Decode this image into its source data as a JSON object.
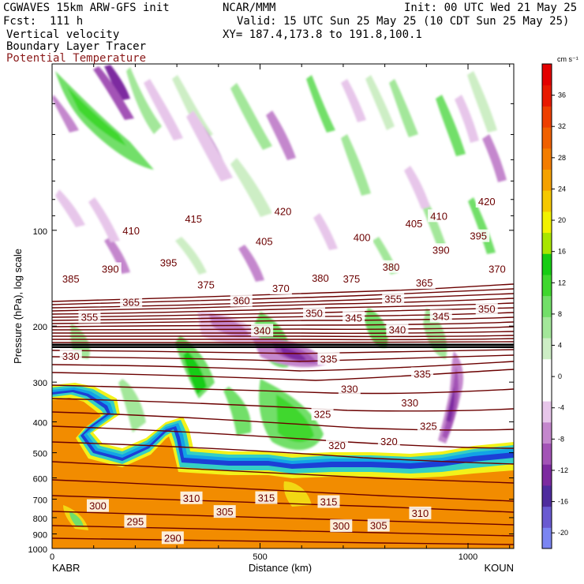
{
  "header": {
    "model": "CGWAVES 15km ARW-GFS init",
    "forecast": "Fcst:  111 h",
    "field1": "Vertical velocity",
    "field2": "Boundary Layer Tracer",
    "field3": "Potential Temperature",
    "org": "NCAR/MMM",
    "init": "Init: 00 UTC Wed 21 May 25",
    "valid": "Valid: 15 UTC Sun 25 May 25 (10 CDT Sun 25 May 25)",
    "xy": "XY= 187.4,173.8 to 191.8,100.1"
  },
  "colors": {
    "theta": "#6b0000",
    "pbl": "#f28c00",
    "pbl_edge": [
      "#1c3fd6",
      "#12a3e6",
      "#34cfc4",
      "#f2f21a"
    ],
    "colorbar": [
      "#7b85f2",
      "#6a5ad1",
      "#4f2c9e",
      "#7d2aa0",
      "#a353b6",
      "#c487cd",
      "#e7c6ea",
      "#ffffff",
      "#ffffff",
      "#cdeec5",
      "#a3e79a",
      "#72df69",
      "#3fd72e",
      "#16cc13",
      "#a8e600",
      "#f2f200",
      "#f6c800",
      "#f5a100",
      "#f47d00",
      "#f06000",
      "#ee3f00",
      "#e81900",
      "#e30000"
    ]
  },
  "chart_data": {
    "type": "cross-section",
    "xlabel": "Distance (km)",
    "ylabel": "Pressure (hPa), log scale",
    "x_range": [
      0,
      1110
    ],
    "x_ticks": [
      "0",
      "500",
      "1000"
    ],
    "x_endpoints": {
      "left": "KABR",
      "right": "KOUN"
    },
    "y_range": [
      1000,
      30
    ],
    "y_ticks": [
      "100",
      "200",
      "300",
      "400",
      "500",
      "600",
      "700",
      "800",
      "900",
      "1000"
    ],
    "colorbar": {
      "unit": "cm s⁻¹",
      "labels": [
        "-20",
        "-16",
        "-12",
        "-8",
        "-4",
        "0",
        "4",
        "8",
        "12",
        "16",
        "20",
        "24",
        "28",
        "32",
        "36"
      ]
    },
    "theta_labels": [
      {
        "text": "420",
        "x": 555,
        "p": 87
      },
      {
        "text": "420",
        "x": 1045,
        "p": 81
      },
      {
        "text": "415",
        "x": 340,
        "p": 92
      },
      {
        "text": "410",
        "x": 190,
        "p": 100
      },
      {
        "text": "410",
        "x": 930,
        "p": 90
      },
      {
        "text": "405",
        "x": 510,
        "p": 108
      },
      {
        "text": "405",
        "x": 870,
        "p": 95
      },
      {
        "text": "400",
        "x": 745,
        "p": 105
      },
      {
        "text": "395",
        "x": 280,
        "p": 126
      },
      {
        "text": "395",
        "x": 1025,
        "p": 104
      },
      {
        "text": "390",
        "x": 140,
        "p": 132
      },
      {
        "text": "390",
        "x": 935,
        "p": 115
      },
      {
        "text": "385",
        "x": 45,
        "p": 142
      },
      {
        "text": "380",
        "x": 645,
        "p": 141
      },
      {
        "text": "380",
        "x": 815,
        "p": 130
      },
      {
        "text": "375",
        "x": 370,
        "p": 148
      },
      {
        "text": "375",
        "x": 720,
        "p": 142
      },
      {
        "text": "370",
        "x": 1070,
        "p": 132
      },
      {
        "text": "370",
        "x": 550,
        "p": 152
      },
      {
        "text": "365",
        "x": 190,
        "p": 168
      },
      {
        "text": "365",
        "x": 895,
        "p": 146
      },
      {
        "text": "360",
        "x": 455,
        "p": 166
      },
      {
        "text": "355",
        "x": 90,
        "p": 187
      },
      {
        "text": "355",
        "x": 820,
        "p": 164
      },
      {
        "text": "350",
        "x": 630,
        "p": 182
      },
      {
        "text": "350",
        "x": 1045,
        "p": 176
      },
      {
        "text": "345",
        "x": 725,
        "p": 188
      },
      {
        "text": "345",
        "x": 935,
        "p": 186
      },
      {
        "text": "340",
        "x": 505,
        "p": 206
      },
      {
        "text": "340",
        "x": 830,
        "p": 205
      },
      {
        "text": "335",
        "x": 665,
        "p": 253
      },
      {
        "text": "335",
        "x": 890,
        "p": 282
      },
      {
        "text": "330",
        "x": 45,
        "p": 248
      },
      {
        "text": "330",
        "x": 715,
        "p": 315
      },
      {
        "text": "330",
        "x": 860,
        "p": 348
      },
      {
        "text": "325",
        "x": 650,
        "p": 378
      },
      {
        "text": "325",
        "x": 905,
        "p": 412
      },
      {
        "text": "320",
        "x": 685,
        "p": 473
      },
      {
        "text": "320",
        "x": 810,
        "p": 460
      },
      {
        "text": "315",
        "x": 515,
        "p": 692
      },
      {
        "text": "315",
        "x": 665,
        "p": 712
      },
      {
        "text": "310",
        "x": 335,
        "p": 693
      },
      {
        "text": "310",
        "x": 885,
        "p": 773
      },
      {
        "text": "305",
        "x": 415,
        "p": 765
      },
      {
        "text": "305",
        "x": 785,
        "p": 845
      },
      {
        "text": "300",
        "x": 110,
        "p": 733
      },
      {
        "text": "300",
        "x": 695,
        "p": 848
      },
      {
        "text": "295",
        "x": 200,
        "p": 822
      },
      {
        "text": "290",
        "x": 290,
        "p": 925
      }
    ]
  }
}
